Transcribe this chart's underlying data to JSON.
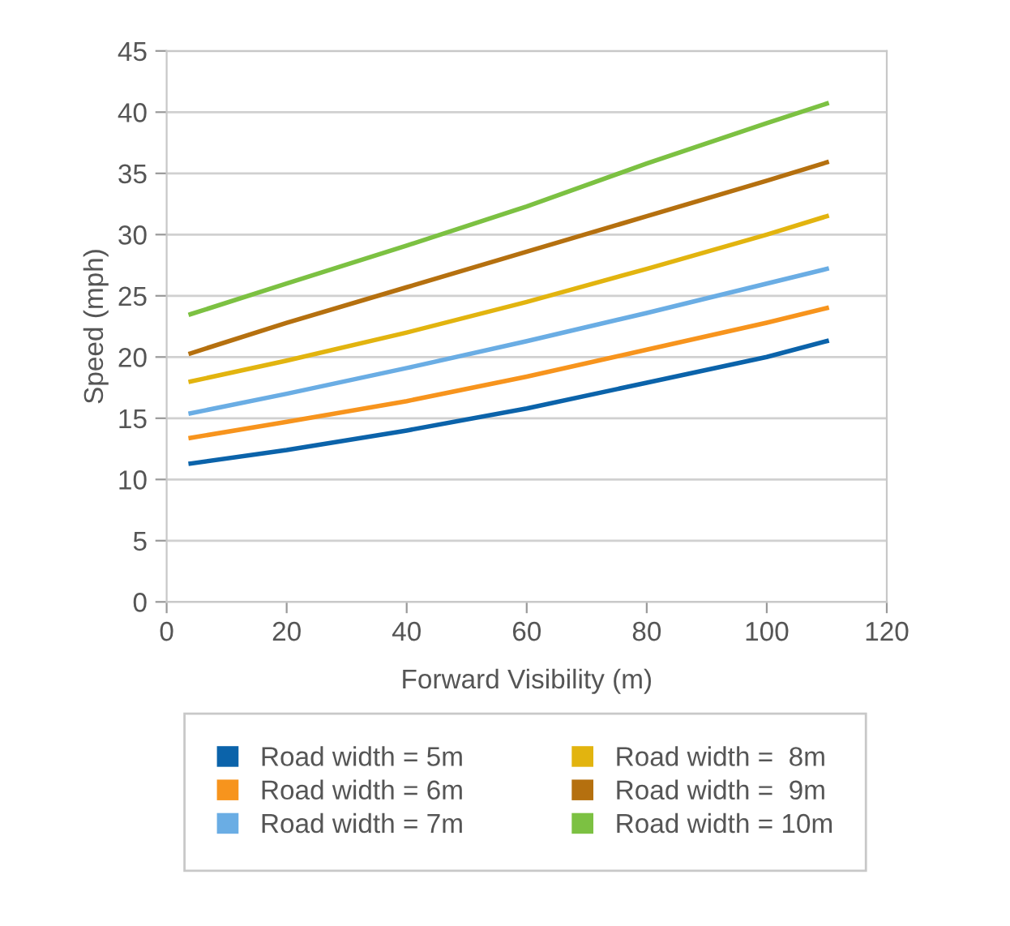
{
  "chart_data": {
    "type": "line",
    "xlabel": "Forward Visibility (m)",
    "ylabel": "Speed (mph)",
    "x": [
      4,
      20,
      40,
      60,
      80,
      100,
      110
    ],
    "xlim": [
      0,
      120
    ],
    "xticks": [
      0,
      20,
      40,
      60,
      80,
      100,
      120
    ],
    "ylim": [
      0,
      45
    ],
    "yticks": [
      0,
      5,
      10,
      15,
      20,
      25,
      30,
      35,
      40,
      45
    ],
    "grid": "y",
    "legend": "bottom",
    "marker": "none",
    "line_style": "solid",
    "series": [
      {
        "name": "Road width = 5m",
        "color": "#0b63aa",
        "values": [
          11.3,
          12.4,
          14.0,
          15.8,
          17.9,
          20.0,
          21.3
        ]
      },
      {
        "name": "Road width = 6m",
        "color": "#f7941d",
        "values": [
          13.4,
          14.7,
          16.4,
          18.4,
          20.6,
          22.8,
          24.0
        ]
      },
      {
        "name": "Road width = 7m",
        "color": "#6aade4",
        "values": [
          15.4,
          17.0,
          19.1,
          21.3,
          23.6,
          26.0,
          27.2
        ]
      },
      {
        "name": "Road width =  8m",
        "color": "#e2b40f",
        "values": [
          18.0,
          19.7,
          22.0,
          24.5,
          27.2,
          30.0,
          31.5
        ]
      },
      {
        "name": "Road width =  9m",
        "color": "#b5700f",
        "values": [
          20.3,
          22.8,
          25.7,
          28.6,
          31.5,
          34.4,
          35.9
        ]
      },
      {
        "name": "Road width = 10m",
        "color": "#7cc142",
        "values": [
          23.5,
          26.0,
          29.1,
          32.3,
          35.8,
          39.1,
          40.7
        ]
      }
    ]
  }
}
